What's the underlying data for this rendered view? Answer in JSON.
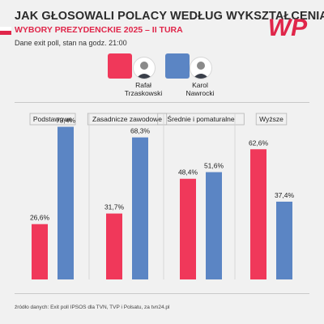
{
  "header": {
    "title": "JAK GŁOSOWALI POLACY WEDŁUG WYKSZTAŁCENIA?",
    "subtitle": "WYBORY PREZYDENCKIE 2025 – II TURA",
    "note": "Dane exit poll, stan na godz. 21:00",
    "logo": "WP"
  },
  "colors": {
    "trzaskowski": "#f0385a",
    "nawrocki": "#5b85c4",
    "accent": "#e0264a"
  },
  "legend": {
    "trzaskowski_line1": "Rafał",
    "trzaskowski_line2": "Trzaskowski",
    "nawrocki_line1": "Karol",
    "nawrocki_line2": "Nawrocki"
  },
  "chart_data": {
    "type": "bar",
    "categories": [
      "Podstawowe",
      "Zasadnicze zawodowe",
      "Średnie i pomaturalne",
      "Wyższe"
    ],
    "series": [
      {
        "name": "Rafał Trzaskowski",
        "values": [
          26.6,
          31.7,
          48.4,
          62.6
        ],
        "labels": [
          "26,6%",
          "31,7%",
          "48,4%",
          "62,6%"
        ]
      },
      {
        "name": "Karol Nawrocki",
        "values": [
          73.4,
          68.3,
          51.6,
          37.4
        ],
        "labels": [
          "73,4%",
          "68,3%",
          "51,6%",
          "37,4%"
        ]
      }
    ],
    "ylim": [
      0,
      100
    ],
    "grid": false
  },
  "footer": {
    "source": "źródło danych: Exit poll IPSOS dla TVN, TVP i Polsatu, za tvn24.pl"
  }
}
